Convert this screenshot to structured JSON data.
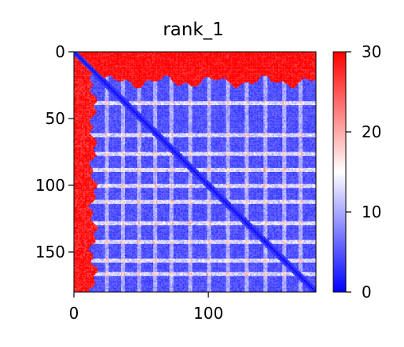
{
  "chart_data": {
    "type": "heatmap",
    "title": "rank_1",
    "xlabel": "",
    "ylabel": "",
    "size": 180,
    "x_ticks": [
      0,
      100
    ],
    "y_ticks": [
      0,
      50,
      100,
      150
    ],
    "xlim": [
      0,
      180
    ],
    "ylim": [
      180,
      0
    ],
    "colorbar": {
      "min": 0,
      "max": 30,
      "ticks": [
        0,
        10,
        20,
        30
      ],
      "colors": [
        "#0000ff",
        "#ffffff",
        "#ff0000"
      ]
    },
    "colormap": "bwr",
    "grid": false,
    "features": {
      "high_top_band_rows": [
        0,
        22
      ],
      "high_left_band_cols": [
        0,
        14
      ],
      "low_body_value": 3,
      "diagonal_value": 0,
      "stripe_rows": [
        38,
        62,
        76,
        88,
        100,
        112,
        128,
        142,
        156,
        166
      ],
      "stripe_cols": [
        24,
        36,
        48,
        60,
        72,
        86,
        100,
        114,
        128,
        142,
        156,
        168
      ]
    }
  }
}
